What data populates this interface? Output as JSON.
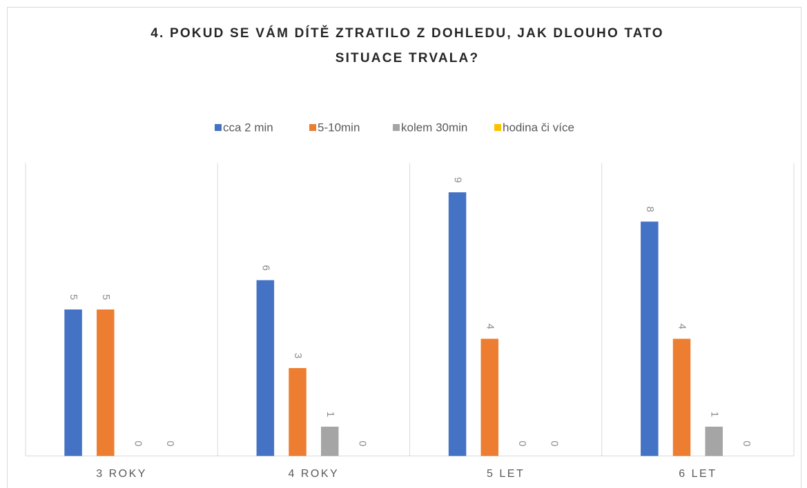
{
  "chart_data": {
    "type": "bar",
    "title": [
      "4. POKUD SE VÁM DÍTĚ ZTRATILO Z DOHLEDU, JAK DLOUHO TATO",
      "SITUACE TRVALA?"
    ],
    "categories": [
      "3 ROKY",
      "4 ROKY",
      "5 LET",
      "6 LET"
    ],
    "series": [
      {
        "name": "cca 2 min",
        "color": "#4472c4",
        "values": [
          5,
          6,
          9,
          8
        ]
      },
      {
        "name": "5-10min",
        "color": "#ed7d31",
        "values": [
          5,
          3,
          4,
          4
        ]
      },
      {
        "name": "kolem 30min",
        "color": "#a5a5a5",
        "values": [
          0,
          1,
          0,
          1
        ]
      },
      {
        "name": "hodina či více",
        "color": "#ffc000",
        "values": [
          0,
          0,
          0,
          0
        ]
      }
    ],
    "ylim": [
      0,
      10
    ],
    "legend": "top"
  }
}
